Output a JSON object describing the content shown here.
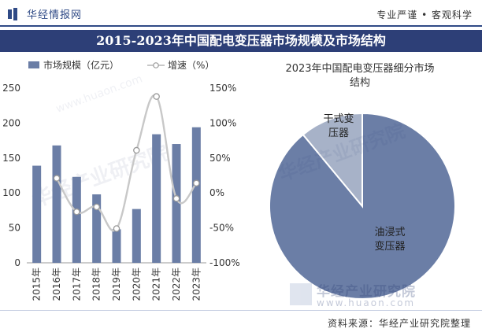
{
  "header": {
    "brand": "华经情报网",
    "tagline": "专业严谨 • 客观科学"
  },
  "title": "2015-2023年中国配电变压器市场规模及市场结构",
  "source": "资料来源：华经产业研究院整理",
  "watermark": {
    "text": "华经产业研究院",
    "url": "www.huaon.com"
  },
  "colors": {
    "bar": "#6b7ea6",
    "line": "#c8c8c8",
    "pie_main": "#6b7ea6",
    "pie_minor": "#a7b2c8",
    "title_band": "#2d3f77"
  },
  "chart_data": [
    {
      "type": "bar",
      "legend": [
        "市场规模（亿元）",
        "增速（%）"
      ],
      "categories": [
        "2015年",
        "2016年",
        "2017年",
        "2018年",
        "2019年",
        "2020年",
        "2021年",
        "2022年",
        "2023年"
      ],
      "series": [
        {
          "name": "市场规模（亿元）",
          "axis": "left",
          "values": [
            139,
            168,
            123,
            98,
            48,
            77,
            184,
            170,
            194
          ]
        },
        {
          "name": "增速（%）",
          "axis": "right",
          "type": "line",
          "values": [
            null,
            21,
            -27,
            -20,
            -51,
            61,
            138,
            -8,
            14
          ]
        }
      ],
      "yLeft": {
        "ylim": [
          0,
          250
        ],
        "ticks": [
          "0",
          "50",
          "100",
          "150",
          "200",
          "250"
        ]
      },
      "yRight": {
        "ylim": [
          -100,
          150
        ],
        "ticks": [
          "-100%",
          "-50%",
          "0%",
          "50%",
          "100%",
          "150%"
        ]
      }
    },
    {
      "type": "pie",
      "title": "2023年中国配电变压器细分市场结构",
      "slices": [
        {
          "label": "油浸式变压器",
          "label_lines": [
            "油浸式",
            "变压器"
          ],
          "value": 89
        },
        {
          "label": "干式变压器",
          "label_lines": [
            "干式变",
            "压器"
          ],
          "value": 11
        }
      ]
    }
  ]
}
